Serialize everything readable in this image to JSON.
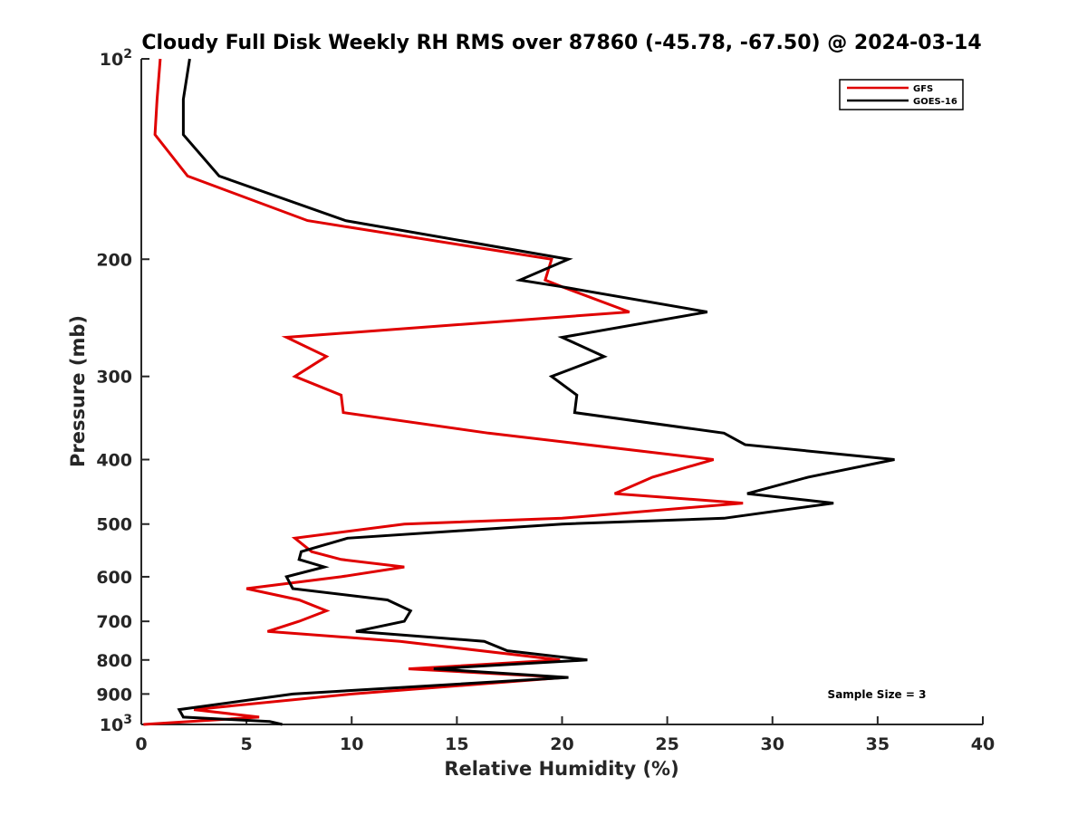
{
  "chart_data": {
    "type": "line",
    "title": "Cloudy Full Disk Weekly RH RMS over 87860 (-45.78, -67.50) @ 2024-03-14",
    "xlabel": "Relative Humidity (%)",
    "ylabel": "Pressure (mb)",
    "xlim": [
      0,
      40
    ],
    "ylim": [
      100,
      1000
    ],
    "y_scale": "log",
    "y_reversed": true,
    "x_ticks": [
      "0",
      "5",
      "10",
      "15",
      "20",
      "25",
      "30",
      "35",
      "40"
    ],
    "y_ticks": [
      {
        "value": 100,
        "label": "10",
        "sup": "2"
      },
      {
        "value": 200,
        "label": "200",
        "sup": ""
      },
      {
        "value": 300,
        "label": "300",
        "sup": ""
      },
      {
        "value": 400,
        "label": "400",
        "sup": ""
      },
      {
        "value": 500,
        "label": "500",
        "sup": ""
      },
      {
        "value": 600,
        "label": "600",
        "sup": ""
      },
      {
        "value": 700,
        "label": "700",
        "sup": ""
      },
      {
        "value": 800,
        "label": "800",
        "sup": ""
      },
      {
        "value": 900,
        "label": "900",
        "sup": ""
      },
      {
        "value": 1000,
        "label": "10",
        "sup": "3"
      }
    ],
    "grid": false,
    "legend_position": "top-right",
    "annotation": "Sample Size = 3",
    "series": [
      {
        "name": "GFS",
        "color": "#e00000",
        "points": [
          [
            0.9,
            100
          ],
          [
            0.75,
            115
          ],
          [
            0.65,
            130
          ],
          [
            2.2,
            150
          ],
          [
            7.9,
            175
          ],
          [
            19.5,
            200
          ],
          [
            19.2,
            215
          ],
          [
            20.0,
            220
          ],
          [
            23.2,
            240
          ],
          [
            6.9,
            262
          ],
          [
            8.8,
            280
          ],
          [
            7.3,
            300
          ],
          [
            9.5,
            320
          ],
          [
            9.6,
            340
          ],
          [
            16.5,
            365
          ],
          [
            27.2,
            400
          ],
          [
            24.3,
            425
          ],
          [
            22.5,
            450
          ],
          [
            28.6,
            465
          ],
          [
            20.0,
            490
          ],
          [
            12.5,
            500
          ],
          [
            7.3,
            525
          ],
          [
            8.1,
            550
          ],
          [
            9.5,
            565
          ],
          [
            12.5,
            580
          ],
          [
            9.5,
            600
          ],
          [
            5.0,
            625
          ],
          [
            7.5,
            650
          ],
          [
            8.8,
            675
          ],
          [
            7.5,
            700
          ],
          [
            6.0,
            725
          ],
          [
            12.3,
            750
          ],
          [
            19.9,
            800
          ],
          [
            12.7,
            825
          ],
          [
            20.1,
            850
          ],
          [
            10.0,
            900
          ],
          [
            2.5,
            950
          ],
          [
            5.6,
            975
          ],
          [
            0.1,
            1000
          ]
        ]
      },
      {
        "name": "GOES-16",
        "color": "#000000",
        "points": [
          [
            2.3,
            100
          ],
          [
            2.0,
            115
          ],
          [
            2.0,
            130
          ],
          [
            3.7,
            150
          ],
          [
            9.7,
            175
          ],
          [
            20.3,
            200
          ],
          [
            18.0,
            215
          ],
          [
            20.0,
            220
          ],
          [
            26.9,
            240
          ],
          [
            20.0,
            262
          ],
          [
            22.0,
            280
          ],
          [
            19.5,
            300
          ],
          [
            20.7,
            320
          ],
          [
            20.6,
            340
          ],
          [
            27.7,
            365
          ],
          [
            28.7,
            380
          ],
          [
            35.8,
            400
          ],
          [
            31.7,
            425
          ],
          [
            28.8,
            450
          ],
          [
            32.9,
            465
          ],
          [
            27.7,
            490
          ],
          [
            20.0,
            500
          ],
          [
            9.8,
            525
          ],
          [
            7.6,
            550
          ],
          [
            7.5,
            565
          ],
          [
            8.7,
            580
          ],
          [
            6.9,
            600
          ],
          [
            7.2,
            625
          ],
          [
            11.7,
            650
          ],
          [
            12.8,
            675
          ],
          [
            12.5,
            700
          ],
          [
            10.2,
            725
          ],
          [
            16.3,
            750
          ],
          [
            17.4,
            775
          ],
          [
            21.2,
            800
          ],
          [
            13.9,
            825
          ],
          [
            20.3,
            850
          ],
          [
            7.2,
            900
          ],
          [
            1.8,
            950
          ],
          [
            2.0,
            975
          ],
          [
            6.1,
            990
          ],
          [
            6.7,
            1000
          ]
        ]
      }
    ]
  }
}
